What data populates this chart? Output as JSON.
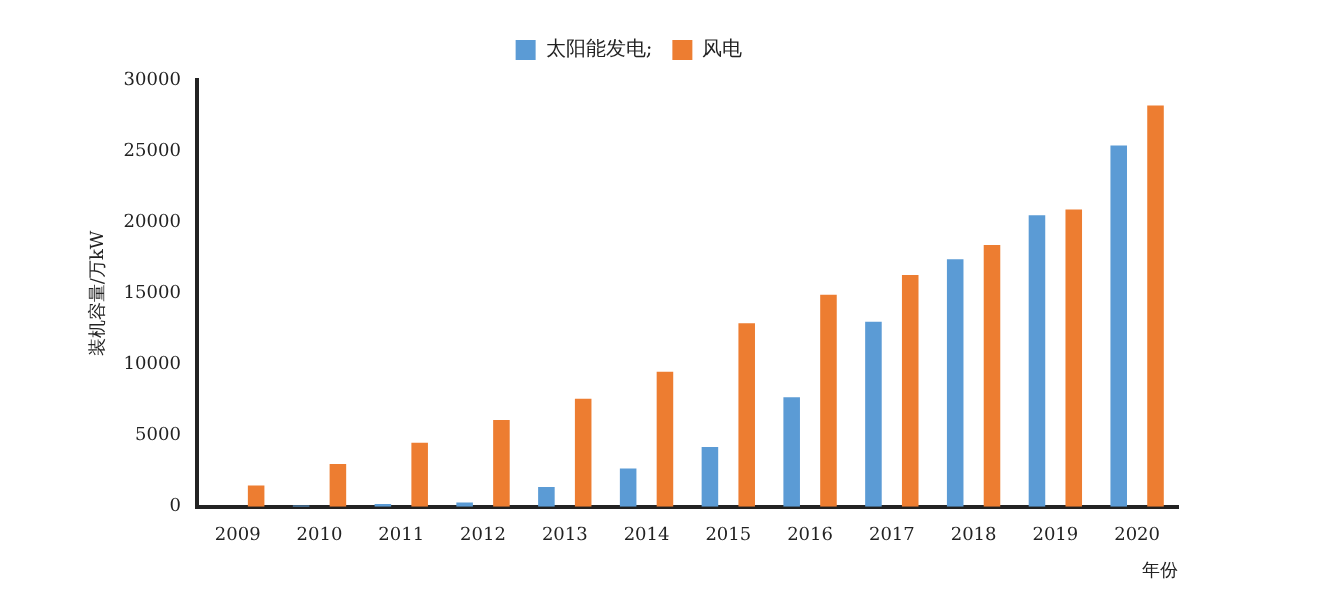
{
  "chart_data": {
    "type": "bar",
    "xlabel": "年份",
    "ylabel": "装机容量/万kW",
    "categories": [
      "2009",
      "2010",
      "2011",
      "2012",
      "2013",
      "2014",
      "2015",
      "2016",
      "2017",
      "2018",
      "2019",
      "2020"
    ],
    "series": [
      {
        "name": "太阳能发电;",
        "color": "#5b9bd5",
        "values": [
          null,
          100,
          200,
          300,
          1400,
          2700,
          4200,
          7700,
          13000,
          17400,
          20500,
          25400
        ]
      },
      {
        "name": "风电",
        "color": "#ed7d31",
        "values": [
          1500,
          3000,
          4500,
          6100,
          7600,
          9500,
          12900,
          14900,
          16300,
          18400,
          20900,
          28200
        ]
      }
    ],
    "ylim": [
      0,
      30000
    ],
    "yticks": [
      0,
      5000,
      10000,
      15000,
      20000,
      25000,
      30000
    ],
    "grid": false,
    "legend": "top"
  }
}
